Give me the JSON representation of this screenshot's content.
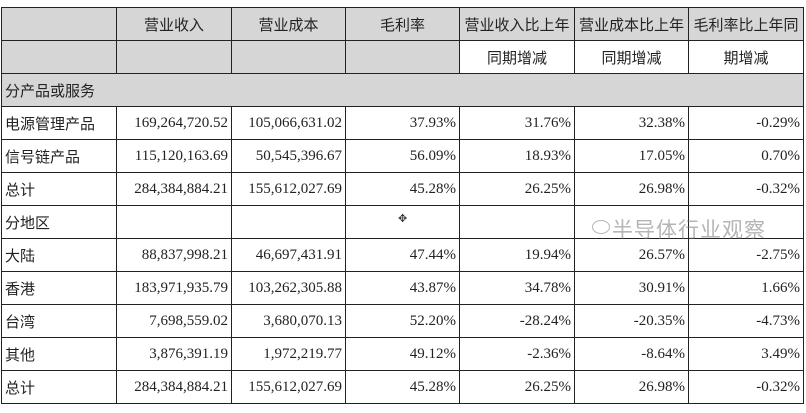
{
  "header": {
    "row1": [
      "",
      "营业收入",
      "营业成本",
      "毛利率",
      "营业收入比上年",
      "营业成本比上年",
      "毛利率比上年同"
    ],
    "row2": [
      "",
      "",
      "",
      "",
      "同期增减",
      "同期增减",
      "期增减"
    ]
  },
  "sections": [
    {
      "label": "分产品或服务",
      "rows": [
        [
          "电源管理产品",
          "169,264,720.52",
          "105,066,631.02",
          "37.93%",
          "31.76%",
          "32.38%",
          "-0.29%"
        ],
        [
          "信号链产品",
          "115,120,163.69",
          "50,545,396.67",
          "56.09%",
          "18.93%",
          "17.05%",
          "0.70%"
        ],
        [
          "总计",
          "284,384,884.21",
          "155,612,027.69",
          "45.28%",
          "26.25%",
          "26.98%",
          "-0.32%"
        ]
      ]
    },
    {
      "label": "分地区",
      "rows": [
        [
          "大陆",
          "88,837,998.21",
          "46,697,431.91",
          "47.44%",
          "19.94%",
          "26.57%",
          "-2.75%"
        ],
        [
          "香港",
          "183,971,935.79",
          "103,262,305.88",
          "43.87%",
          "34.78%",
          "30.91%",
          "1.66%"
        ],
        [
          "台湾",
          "7,698,559.02",
          "3,680,070.13",
          "52.20%",
          "-28.24%",
          "-20.35%",
          "-4.73%"
        ],
        [
          "其他",
          "3,876,391.19",
          "1,972,219.77",
          "49.12%",
          "-2.36%",
          "-8.64%",
          "3.49%"
        ],
        [
          "总计",
          "284,384,884.21",
          "155,612,027.69",
          "45.28%",
          "26.25%",
          "26.98%",
          "-0.32%"
        ]
      ]
    }
  ],
  "watermark": "半导体行业观察"
}
